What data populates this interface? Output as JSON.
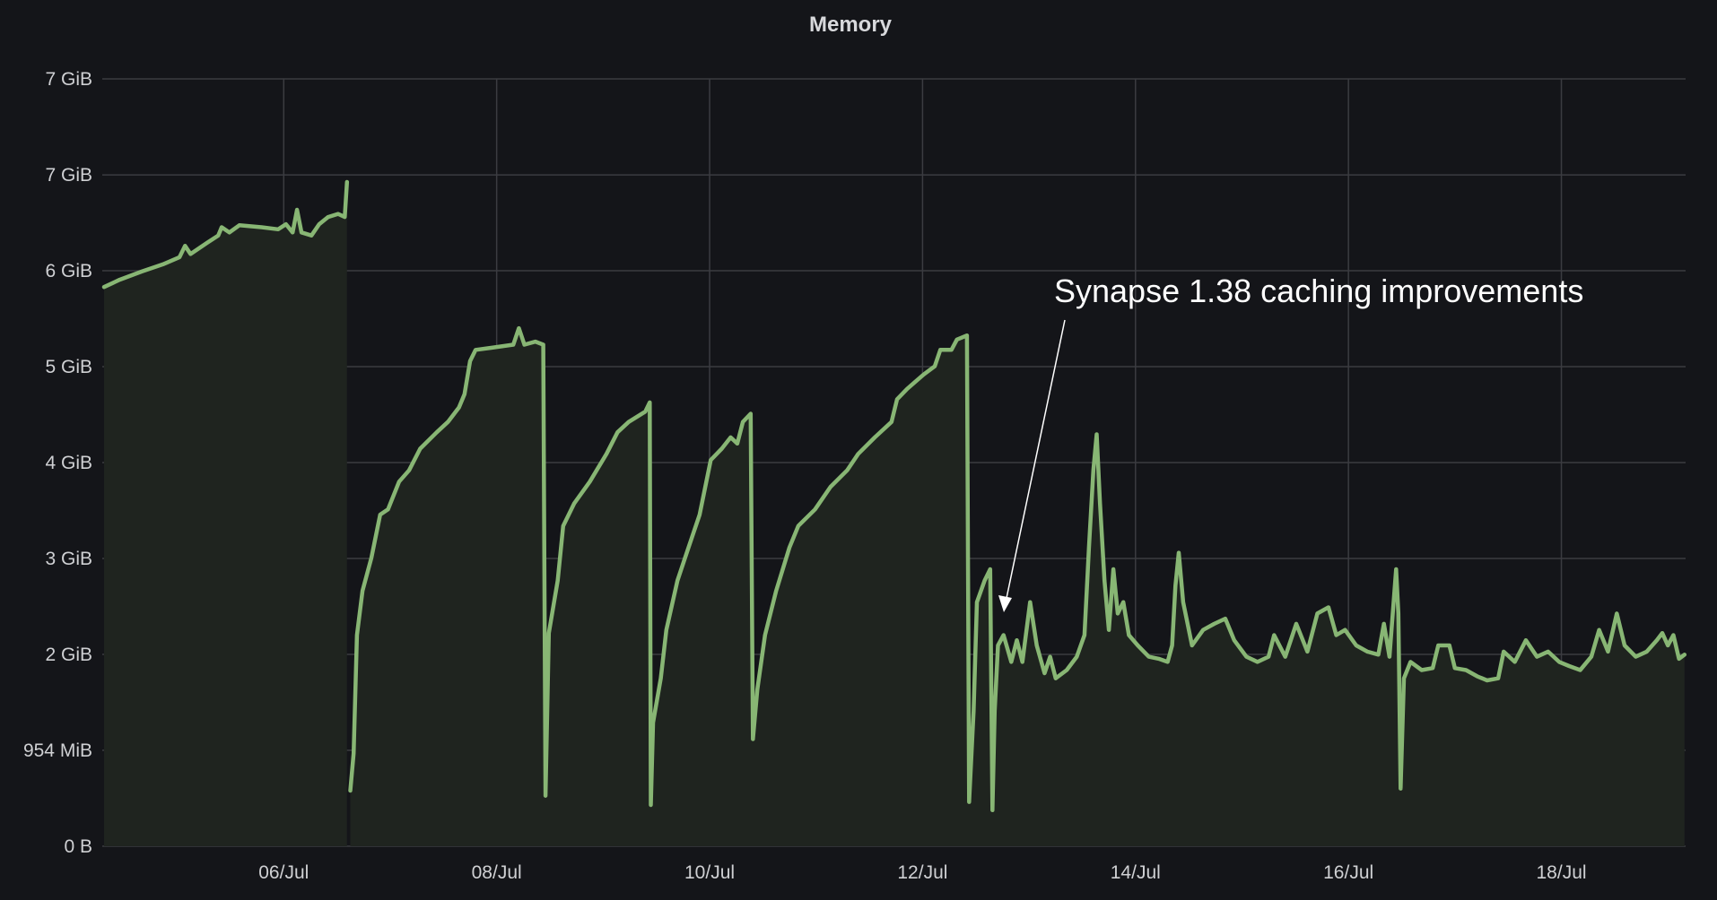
{
  "chart_data": {
    "type": "area",
    "title": "Memory",
    "xlabel": "",
    "ylabel": "",
    "unit": "GiB",
    "grid": true,
    "legend": "none",
    "colors": {
      "background": "#141519",
      "line": "#88b674",
      "fill": "#1f241f",
      "grid": "#3b3c41",
      "annotation": "#ffffff"
    },
    "xlim": [
      "07-04 07:30",
      "07-19 04:00"
    ],
    "ylim": [
      0,
      7.451
    ],
    "xticks": [
      {
        "label": "06/Jul",
        "at": "07-06 00:00"
      },
      {
        "label": "08/Jul",
        "at": "07-08 00:00"
      },
      {
        "label": "10/Jul",
        "at": "07-10 00:00"
      },
      {
        "label": "12/Jul",
        "at": "07-12 00:00"
      },
      {
        "label": "14/Jul",
        "at": "07-14 00:00"
      },
      {
        "label": "16/Jul",
        "at": "07-16 00:00"
      },
      {
        "label": "18/Jul",
        "at": "07-18 00:00"
      }
    ],
    "yticks": [
      {
        "label": "0 B",
        "value": 0
      },
      {
        "label": "954 MiB",
        "value": 0.931
      },
      {
        "label": "2 GiB",
        "value": 1.863
      },
      {
        "label": "3 GiB",
        "value": 2.794
      },
      {
        "label": "4 GiB",
        "value": 3.725
      },
      {
        "label": "5 GiB",
        "value": 4.657
      },
      {
        "label": "6 GiB",
        "value": 5.588
      },
      {
        "label": "7 GiB",
        "value": 6.519
      },
      {
        "label": "7 GiB",
        "value": 7.451
      }
    ],
    "annotation": {
      "text": "Synapse 1.38 caching improvements",
      "at": "07-12 17:00"
    },
    "series": [
      {
        "points": [
          [
            "07-04 07:30",
            5.43
          ],
          [
            "07-04 11:00",
            5.5
          ],
          [
            "07-04 16:00",
            5.58
          ],
          [
            "07-04 20:45",
            5.65
          ],
          [
            "07-05 00:30",
            5.72
          ],
          [
            "07-05 01:45",
            5.83
          ],
          [
            "07-05 03:00",
            5.75
          ],
          [
            "07-05 06:45",
            5.86
          ],
          [
            "07-05 09:15",
            5.93
          ],
          [
            "07-05 10:00",
            6.01
          ],
          [
            "07-05 11:45",
            5.96
          ],
          [
            "07-05 14:00",
            6.03
          ],
          [
            "07-05 19:00",
            6.01
          ],
          [
            "07-05 22:45",
            5.99
          ],
          [
            "07-06 00:30",
            6.04
          ],
          [
            "07-06 02:00",
            5.96
          ],
          [
            "07-06 03:00",
            6.18
          ],
          [
            "07-06 04:00",
            5.96
          ],
          [
            "07-06 06:15",
            5.93
          ],
          [
            "07-06 08:00",
            6.04
          ],
          [
            "07-06 10:00",
            6.11
          ],
          [
            "07-06 12:15",
            6.14
          ],
          [
            "07-06 13:45",
            6.11
          ],
          [
            "07-06 14:15",
            6.45
          ],
          [
            "07-06 14:30",
            null
          ],
          [
            "07-06 15:00",
            0.54
          ],
          [
            "07-06 15:45",
            0.9
          ],
          [
            "07-06 16:30",
            2.05
          ],
          [
            "07-06 17:45",
            2.48
          ],
          [
            "07-06 19:45",
            2.8
          ],
          [
            "07-06 21:45",
            3.22
          ],
          [
            "07-06 23:30",
            3.27
          ],
          [
            "07-07 02:00",
            3.54
          ],
          [
            "07-07 04:15",
            3.65
          ],
          [
            "07-07 06:45",
            3.86
          ],
          [
            "07-07 10:30",
            4.02
          ],
          [
            "07-07 13:00",
            4.12
          ],
          [
            "07-07 15:30",
            4.26
          ],
          [
            "07-07 16:45",
            4.39
          ],
          [
            "07-07 18:00",
            4.71
          ],
          [
            "07-07 19:15",
            4.82
          ],
          [
            "07-07 22:45",
            4.84
          ],
          [
            "07-08 03:45",
            4.87
          ],
          [
            "07-08 05:00",
            5.03
          ],
          [
            "07-08 06:15",
            4.87
          ],
          [
            "07-08 08:45",
            4.9
          ],
          [
            "07-08 10:30",
            4.87
          ],
          [
            "07-08 11:00",
            0.49
          ],
          [
            "07-08 11:45",
            2.07
          ],
          [
            "07-08 13:45",
            2.58
          ],
          [
            "07-08 15:00",
            3.11
          ],
          [
            "07-08 17:30",
            3.33
          ],
          [
            "07-08 21:00",
            3.54
          ],
          [
            "07-09 00:45",
            3.81
          ],
          [
            "07-09 03:15",
            4.02
          ],
          [
            "07-09 05:45",
            4.12
          ],
          [
            "07-09 09:30",
            4.22
          ],
          [
            "07-09 10:30",
            4.31
          ],
          [
            "07-09 10:45",
            0.4
          ],
          [
            "07-09 11:15",
            1.2
          ],
          [
            "07-09 13:00",
            1.63
          ],
          [
            "07-09 14:15",
            2.1
          ],
          [
            "07-09 16:45",
            2.58
          ],
          [
            "07-09 19:15",
            2.9
          ],
          [
            "07-09 21:45",
            3.22
          ],
          [
            "07-10 00:15",
            3.75
          ],
          [
            "07-10 02:45",
            3.86
          ],
          [
            "07-10 04:45",
            3.97
          ],
          [
            "07-10 06:15",
            3.91
          ],
          [
            "07-10 07:30",
            4.12
          ],
          [
            "07-10 09:15",
            4.2
          ],
          [
            "07-10 09:45",
            1.04
          ],
          [
            "07-10 10:45",
            1.52
          ],
          [
            "07-10 12:30",
            2.05
          ],
          [
            "07-10 15:00",
            2.48
          ],
          [
            "07-10 18:00",
            2.9
          ],
          [
            "07-10 20:00",
            3.11
          ],
          [
            "07-10 23:45",
            3.27
          ],
          [
            "07-11 03:15",
            3.49
          ],
          [
            "07-11 07:00",
            3.65
          ],
          [
            "07-11 09:30",
            3.81
          ],
          [
            "07-11 13:15",
            3.97
          ],
          [
            "07-11 17:00",
            4.12
          ],
          [
            "07-11 18:15",
            4.34
          ],
          [
            "07-11 20:30",
            4.44
          ],
          [
            "07-12 00:15",
            4.58
          ],
          [
            "07-12 02:45",
            4.66
          ],
          [
            "07-12 04:00",
            4.82
          ],
          [
            "07-12 06:30",
            4.82
          ],
          [
            "07-12 07:45",
            4.92
          ],
          [
            "07-12 10:00",
            4.96
          ],
          [
            "07-12 10:30",
            0.43
          ],
          [
            "07-12 11:30",
            1.31
          ],
          [
            "07-12 12:15",
            2.37
          ],
          [
            "07-12 14:00",
            2.58
          ],
          [
            "07-12 15:15",
            2.69
          ],
          [
            "07-12 15:45",
            0.35
          ],
          [
            "07-12 16:15",
            1.31
          ],
          [
            "07-12 17:00",
            1.95
          ],
          [
            "07-12 18:15",
            2.05
          ],
          [
            "07-12 20:00",
            1.79
          ],
          [
            "07-12 21:15",
            2.0
          ],
          [
            "07-12 22:30",
            1.79
          ],
          [
            "07-13 00:15",
            2.37
          ],
          [
            "07-13 01:45",
            1.95
          ],
          [
            "07-13 03:30",
            1.68
          ],
          [
            "07-13 04:45",
            1.84
          ],
          [
            "07-13 06:00",
            1.63
          ],
          [
            "07-13 08:30",
            1.71
          ],
          [
            "07-13 10:45",
            1.84
          ],
          [
            "07-13 12:30",
            2.05
          ],
          [
            "07-13 13:30",
            2.9
          ],
          [
            "07-13 14:30",
            3.65
          ],
          [
            "07-13 15:15",
            4.0
          ],
          [
            "07-13 16:00",
            3.33
          ],
          [
            "07-13 17:00",
            2.58
          ],
          [
            "07-13 18:00",
            2.1
          ],
          [
            "07-13 19:00",
            2.69
          ],
          [
            "07-13 20:00",
            2.26
          ],
          [
            "07-13 21:15",
            2.37
          ],
          [
            "07-13 22:30",
            2.05
          ],
          [
            "07-14 00:30",
            1.95
          ],
          [
            "07-14 03:00",
            1.84
          ],
          [
            "07-14 05:15",
            1.82
          ],
          [
            "07-14 07:15",
            1.79
          ],
          [
            "07-14 08:15",
            1.95
          ],
          [
            "07-14 09:00",
            2.53
          ],
          [
            "07-14 09:45",
            2.85
          ],
          [
            "07-14 10:45",
            2.37
          ],
          [
            "07-14 12:45",
            1.95
          ],
          [
            "07-14 15:15",
            2.1
          ],
          [
            "07-14 17:45",
            2.16
          ],
          [
            "07-14 20:15",
            2.21
          ],
          [
            "07-14 22:15",
            2.0
          ],
          [
            "07-15 01:00",
            1.84
          ],
          [
            "07-15 03:30",
            1.79
          ],
          [
            "07-15 06:00",
            1.84
          ],
          [
            "07-15 07:15",
            2.05
          ],
          [
            "07-15 09:45",
            1.84
          ],
          [
            "07-15 12:15",
            2.16
          ],
          [
            "07-15 14:45",
            1.89
          ],
          [
            "07-15 17:00",
            2.26
          ],
          [
            "07-15 19:30",
            2.32
          ],
          [
            "07-15 21:15",
            2.05
          ],
          [
            "07-15 23:15",
            2.1
          ],
          [
            "07-16 01:45",
            1.95
          ],
          [
            "07-16 04:15",
            1.89
          ],
          [
            "07-16 06:45",
            1.86
          ],
          [
            "07-16 08:00",
            2.16
          ],
          [
            "07-16 09:15",
            1.84
          ],
          [
            "07-16 10:45",
            2.69
          ],
          [
            "07-16 11:15",
            2.26
          ],
          [
            "07-16 11:45",
            0.56
          ],
          [
            "07-16 12:30",
            1.63
          ],
          [
            "07-16 14:00",
            1.79
          ],
          [
            "07-16 16:30",
            1.71
          ],
          [
            "07-16 19:00",
            1.73
          ],
          [
            "07-16 20:15",
            1.95
          ],
          [
            "07-16 22:45",
            1.95
          ],
          [
            "07-17 00:00",
            1.73
          ],
          [
            "07-17 02:30",
            1.71
          ],
          [
            "07-17 05:00",
            1.65
          ],
          [
            "07-17 07:15",
            1.61
          ],
          [
            "07-17 09:45",
            1.63
          ],
          [
            "07-17 11:00",
            1.89
          ],
          [
            "07-17 13:30",
            1.79
          ],
          [
            "07-17 16:00",
            2.0
          ],
          [
            "07-17 18:30",
            1.84
          ],
          [
            "07-17 21:00",
            1.89
          ],
          [
            "07-17 23:30",
            1.79
          ],
          [
            "07-18 01:45",
            1.75
          ],
          [
            "07-18 04:15",
            1.71
          ],
          [
            "07-18 06:45",
            1.84
          ],
          [
            "07-18 08:30",
            2.1
          ],
          [
            "07-18 10:30",
            1.89
          ],
          [
            "07-18 12:30",
            2.26
          ],
          [
            "07-18 14:15",
            1.95
          ],
          [
            "07-18 16:45",
            1.84
          ],
          [
            "07-18 19:15",
            1.89
          ],
          [
            "07-18 21:30",
            2.0
          ],
          [
            "07-18 22:45",
            2.07
          ],
          [
            "07-19 00:00",
            1.95
          ],
          [
            "07-19 01:15",
            2.05
          ],
          [
            "07-19 02:30",
            1.82
          ],
          [
            "07-19 03:45",
            1.86
          ]
        ]
      }
    ]
  }
}
